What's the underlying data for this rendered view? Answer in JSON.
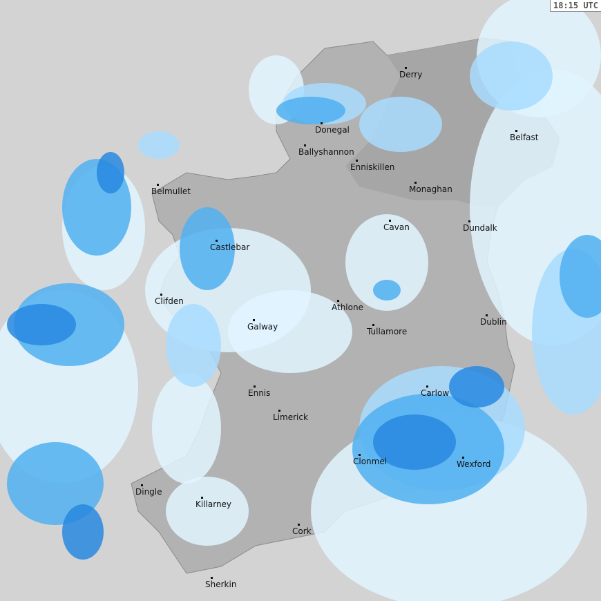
{
  "timestamp": "18:15 UTC",
  "colors": {
    "sea": "#d3d3d3",
    "land": "#b2b2b2",
    "land_north": "#a6a6a6",
    "border": "#8a8a8a",
    "rain_light": "#e0f4ff",
    "rain_low": "#a8dcff",
    "rain_mid": "#50b0f0",
    "rain_high": "#2888e0"
  },
  "cities": [
    {
      "name": "Derry"
    },
    {
      "name": "Donegal"
    },
    {
      "name": "Ballyshannon"
    },
    {
      "name": "Enniskillen"
    },
    {
      "name": "Monaghan"
    },
    {
      "name": "Belfast"
    },
    {
      "name": "Belmullet"
    },
    {
      "name": "Cavan"
    },
    {
      "name": "Dundalk"
    },
    {
      "name": "Castlebar"
    },
    {
      "name": "Clifden"
    },
    {
      "name": "Athlone"
    },
    {
      "name": "Galway"
    },
    {
      "name": "Dublin"
    },
    {
      "name": "Tullamore"
    },
    {
      "name": "Ennis"
    },
    {
      "name": "Carlow"
    },
    {
      "name": "Limerick"
    },
    {
      "name": "Clonmel"
    },
    {
      "name": "Wexford"
    },
    {
      "name": "Dingle"
    },
    {
      "name": "Killarney"
    },
    {
      "name": "Cork"
    },
    {
      "name": "Sherkin"
    }
  ]
}
